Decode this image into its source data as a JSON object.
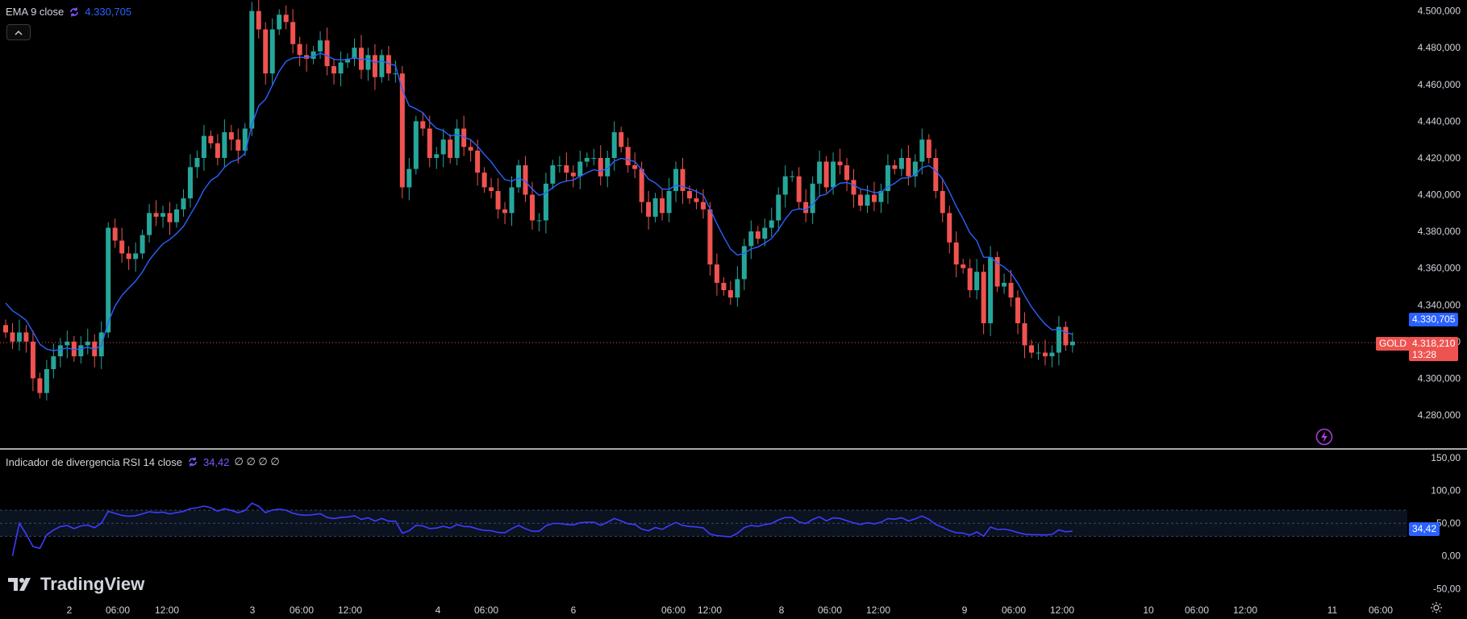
{
  "legend_main": {
    "indicator": "EMA 9 close",
    "value": "4.330,705"
  },
  "legend_rsi": {
    "indicator": "Indicador de divergencia RSI 14 close",
    "value": "34,42",
    "extras": "∅ ∅ ∅ ∅"
  },
  "brand": "TradingView",
  "price_tags": {
    "ema": "4.330,705",
    "symbol": "GOLD",
    "last": "4.318,210",
    "countdown": "13:28",
    "rsi": "34,42"
  },
  "colors": {
    "up": "#26a69a",
    "down": "#ef5350",
    "ema": "#2962ff",
    "rsi": "#3d3dff",
    "background": "#000000",
    "grid": "#1a1a1a"
  },
  "chart_data": [
    {
      "type": "candlestick",
      "title": "GOLD",
      "ylim": [
        4262,
        4506
      ],
      "y_ticks": [
        "4.500,000",
        "4.480,000",
        "4.460,000",
        "4.440,000",
        "4.420,000",
        "4.400,000",
        "4.380,000",
        "4.360,000",
        "4.340,000",
        "4.320,000",
        "4.300,000",
        "4.280,000"
      ],
      "y_tick_values": [
        4500,
        4480,
        4460,
        4440,
        4420,
        4400,
        4380,
        4360,
        4340,
        4320,
        4300,
        4280
      ],
      "x_tick_labels": [
        "2",
        "06:00",
        "12:00",
        "3",
        "06:00",
        "12:00",
        "4",
        "06:00",
        "6",
        "06:00",
        "12:00",
        "8",
        "06:00",
        "12:00",
        "9",
        "06:00",
        "12:00",
        "10",
        "06:00",
        "12:00",
        "11",
        "06:00"
      ],
      "last_price": 4318.21,
      "ema_period": 9,
      "ema_last": 4330.705,
      "closes": [
        4325,
        4320,
        4325,
        4320,
        4300,
        4292,
        4305,
        4312,
        4318,
        4320,
        4312,
        4318,
        4320,
        4312,
        4325,
        4382,
        4375,
        4368,
        4365,
        4368,
        4378,
        4390,
        4388,
        4390,
        4385,
        4392,
        4398,
        4415,
        4420,
        4432,
        4428,
        4420,
        4434,
        4430,
        4424,
        4436,
        4500,
        4490,
        4466,
        4490,
        4498,
        4494,
        4482,
        4476,
        4474,
        4478,
        4484,
        4470,
        4466,
        4472,
        4474,
        4480,
        4468,
        4476,
        4464,
        4476,
        4466,
        4466,
        4404,
        4414,
        4440,
        4436,
        4420,
        4422,
        4430,
        4420,
        4436,
        4426,
        4424,
        4412,
        4404,
        4402,
        4392,
        4390,
        4404,
        4416,
        4400,
        4386,
        4386,
        4406,
        4416,
        4416,
        4412,
        4410,
        4418,
        4420,
        4420,
        4410,
        4420,
        4434,
        4426,
        4416,
        4414,
        4396,
        4388,
        4398,
        4390,
        4402,
        4414,
        4402,
        4398,
        4396,
        4392,
        4362,
        4352,
        4348,
        4344,
        4354,
        4372,
        4380,
        4376,
        4382,
        4386,
        4400,
        4410,
        4410,
        4396,
        4390,
        4406,
        4418,
        4404,
        4418,
        4416,
        4408,
        4400,
        4394,
        4400,
        4396,
        4402,
        4416,
        4414,
        4420,
        4410,
        4418,
        4430,
        4420,
        4402,
        4390,
        4374,
        4362,
        4360,
        4348,
        4358,
        4330,
        4366,
        4350,
        4352,
        4344,
        4330,
        4318,
        4314,
        4314,
        4312,
        4314,
        4328,
        4318,
        4320
      ],
      "series": [
        {
          "name": "EMA 9 close",
          "last": 4330.705
        }
      ]
    },
    {
      "type": "line",
      "title": "Indicador de divergencia RSI 14 close",
      "ylim": [
        -62,
        160
      ],
      "y_ticks": [
        "150,00",
        "100,00",
        "50,00",
        "0,00",
        "-50,00"
      ],
      "y_tick_values": [
        150,
        100,
        50,
        0,
        -50
      ],
      "bands": [
        30,
        50,
        70
      ],
      "last": 34.42
    }
  ]
}
